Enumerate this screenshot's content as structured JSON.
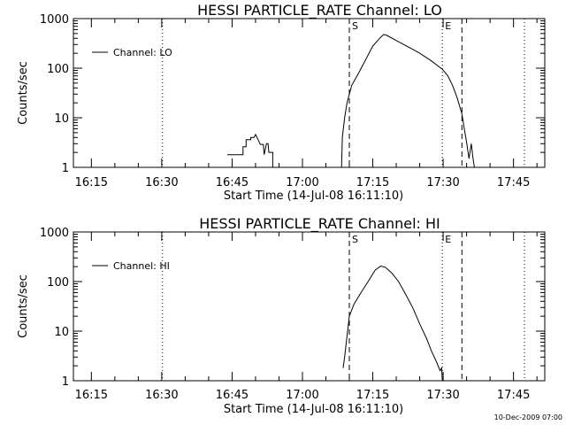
{
  "footer_date": "10-Dec-2009 07:00",
  "chart_data": [
    {
      "type": "line",
      "title": "HESSI PARTICLE_RATE Channel: LO",
      "ylabel": "Counts/sec",
      "xlabel": "Start Time (14-Jul-08 16:11:10)",
      "yscale": "log",
      "ylim": [
        1,
        1000
      ],
      "xlim": [
        "16:11:10",
        "17:51:40"
      ],
      "x_ticks": [
        "16:15",
        "16:30",
        "16:45",
        "17:00",
        "17:15",
        "17:30",
        "17:45"
      ],
      "y_ticks": [
        "1",
        "10",
        "100",
        "1000"
      ],
      "legend": {
        "position": "top-left",
        "label": "Channel: LO"
      },
      "markers": [
        {
          "label": "S",
          "time": "17:10:00",
          "style": "dashed"
        },
        {
          "label": "E",
          "time": "17:29:50",
          "style": "dotted"
        }
      ],
      "vlines": [
        {
          "time": "16:30:10",
          "style": "dotted"
        },
        {
          "time": "17:10:00",
          "style": "dashed"
        },
        {
          "time": "17:29:50",
          "style": "dotted"
        },
        {
          "time": "17:34:00",
          "style": "dashed"
        },
        {
          "time": "17:47:20",
          "style": "dotted"
        }
      ],
      "series": [
        {
          "name": "Channel: LO",
          "segments": [
            [
              [
                "16:44:00",
                1.8
              ],
              [
                "16:47:20",
                1.8
              ],
              [
                "16:47:20",
                2.6
              ],
              [
                "16:48:00",
                2.6
              ],
              [
                "16:48:00",
                3.6
              ],
              [
                "16:49:00",
                3.6
              ],
              [
                "16:49:00",
                4.0
              ],
              [
                "16:49:40",
                4.0
              ],
              [
                "16:50:00",
                4.6
              ],
              [
                "16:50:40",
                3.4
              ],
              [
                "16:51:00",
                2.9
              ],
              [
                "16:51:40",
                2.9
              ],
              [
                "16:51:50",
                1.8
              ],
              [
                "16:52:20",
                3.0
              ],
              [
                "16:52:40",
                3.0
              ],
              [
                "16:52:50",
                2.0
              ],
              [
                "16:53:40",
                2.0
              ],
              [
                "16:53:40",
                1.0
              ]
            ],
            [
              [
                "17:08:20",
                1.0
              ],
              [
                "17:08:30",
                4
              ],
              [
                "17:09:00",
                10
              ],
              [
                "17:09:30",
                20
              ],
              [
                "17:10:30",
                45
              ],
              [
                "17:12:00",
                80
              ],
              [
                "17:13:30",
                150
              ],
              [
                "17:15:00",
                280
              ],
              [
                "17:16:40",
                420
              ],
              [
                "17:17:20",
                480
              ],
              [
                "17:18:00",
                460
              ],
              [
                "17:20:00",
                360
              ],
              [
                "17:22:30",
                270
              ],
              [
                "17:25:00",
                200
              ],
              [
                "17:27:30",
                140
              ],
              [
                "17:29:50",
                95
              ],
              [
                "17:31:00",
                70
              ],
              [
                "17:32:00",
                45
              ],
              [
                "17:33:00",
                25
              ],
              [
                "17:34:00",
                12
              ],
              [
                "17:34:30",
                6
              ],
              [
                "17:35:00",
                3.2
              ],
              [
                "17:35:30",
                1.5
              ],
              [
                "17:36:00",
                3.0
              ],
              [
                "17:36:20",
                1.6
              ],
              [
                "17:36:40",
                1.0
              ]
            ]
          ]
        }
      ]
    },
    {
      "type": "line",
      "title": "HESSI PARTICLE_RATE Channel: HI",
      "ylabel": "Counts/sec",
      "xlabel": "Start Time (14-Jul-08 16:11:10)",
      "yscale": "log",
      "ylim": [
        1,
        1000
      ],
      "xlim": [
        "16:11:10",
        "17:51:40"
      ],
      "x_ticks": [
        "16:15",
        "16:30",
        "16:45",
        "17:00",
        "17:15",
        "17:30",
        "17:45"
      ],
      "y_ticks": [
        "1",
        "10",
        "100",
        "1000"
      ],
      "legend": {
        "position": "top-left",
        "label": "Channel: HI"
      },
      "markers": [
        {
          "label": "S",
          "time": "17:10:00",
          "style": "dashed"
        },
        {
          "label": "E",
          "time": "17:29:50",
          "style": "dotted"
        }
      ],
      "vlines": [
        {
          "time": "16:30:10",
          "style": "dotted"
        },
        {
          "time": "17:10:00",
          "style": "dashed"
        },
        {
          "time": "17:29:50",
          "style": "dotted"
        },
        {
          "time": "17:34:00",
          "style": "dashed"
        },
        {
          "time": "17:47:20",
          "style": "dotted"
        }
      ],
      "series": [
        {
          "name": "Channel: HI",
          "segments": [
            [
              [
                "17:08:40",
                1.8
              ],
              [
                "17:09:00",
                3
              ],
              [
                "17:09:30",
                8
              ],
              [
                "17:10:00",
                20
              ],
              [
                "17:11:00",
                35
              ],
              [
                "17:12:30",
                60
              ],
              [
                "17:14:00",
                100
              ],
              [
                "17:15:30",
                170
              ],
              [
                "17:16:40",
                205
              ],
              [
                "17:17:40",
                195
              ],
              [
                "17:19:00",
                150
              ],
              [
                "17:20:30",
                100
              ],
              [
                "17:22:00",
                55
              ],
              [
                "17:23:30",
                30
              ],
              [
                "17:25:00",
                14
              ],
              [
                "17:26:30",
                7
              ],
              [
                "17:27:30",
                4
              ],
              [
                "17:28:30",
                2.5
              ],
              [
                "17:29:20",
                1.6
              ],
              [
                "17:29:40",
                1.8
              ],
              [
                "17:29:50",
                1.0
              ]
            ]
          ]
        }
      ]
    }
  ]
}
